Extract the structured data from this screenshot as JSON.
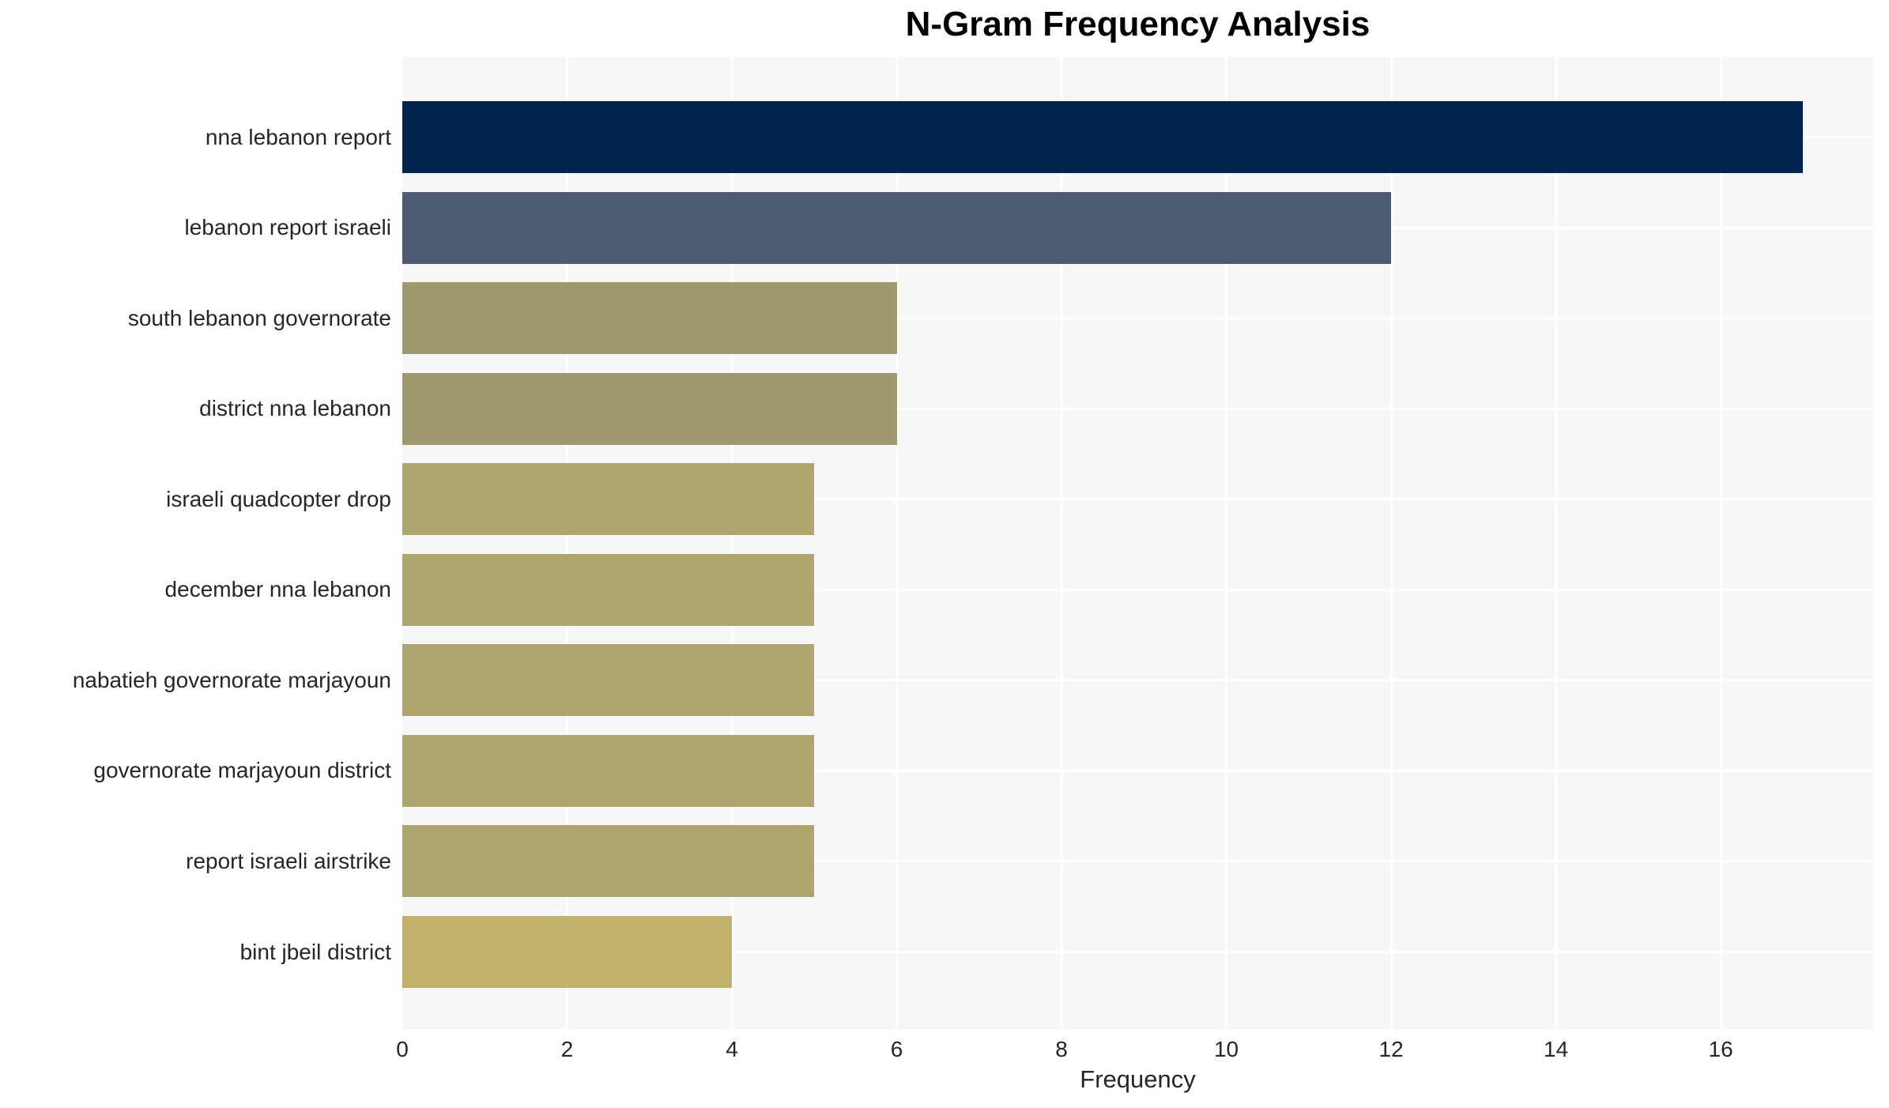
{
  "chart_data": {
    "type": "bar",
    "orientation": "horizontal",
    "title": "N-Gram Frequency Analysis",
    "xlabel": "Frequency",
    "ylabel": "",
    "categories": [
      "nna lebanon report",
      "lebanon report israeli",
      "south lebanon governorate",
      "district nna lebanon",
      "israeli quadcopter drop",
      "december nna lebanon",
      "nabatieh governorate marjayoun",
      "governorate marjayoun district",
      "report israeli airstrike",
      "bint jbeil district"
    ],
    "values": [
      17,
      12,
      6,
      6,
      5,
      5,
      5,
      5,
      5,
      4
    ],
    "bar_colors": [
      "#00254e",
      "#4e5a72",
      "#a0986e",
      "#a0986e",
      "#ada46e",
      "#ada46e",
      "#ada46e",
      "#ada46e",
      "#ada46e",
      "#c2b269"
    ],
    "xticks": [
      0,
      2,
      4,
      6,
      8,
      10,
      12,
      14,
      16
    ],
    "xlim": [
      0,
      17.85
    ],
    "grid": true,
    "legend": null,
    "plot_background": "#f7f7f7",
    "grid_color": "#ffffff",
    "axis_text_color": "#262626",
    "title_color": "#000000"
  }
}
